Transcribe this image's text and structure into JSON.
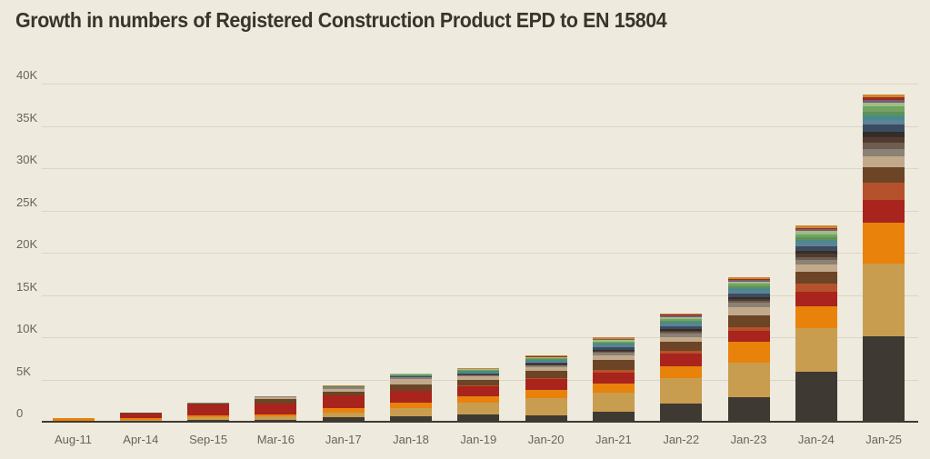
{
  "title": "Growth in numbers of Registered Construction Product EPD to EN 15804",
  "colors": {
    "background": "#EEEADD",
    "title_text": "#39342C",
    "axis_line": "#3E3A33",
    "gridline": "#DBD5C6",
    "tick_label": "#6B6456"
  },
  "chart_data": {
    "type": "bar",
    "stacked": true,
    "title": "Growth in numbers of Registered Construction Product EPD to EN 15804",
    "xlabel": "",
    "ylabel": "",
    "legend_position": "none",
    "grid": "horizontal",
    "ylim": [
      0,
      40000
    ],
    "y_axis": {
      "ticks": [
        {
          "label": "0",
          "value": 0
        },
        {
          "label": "5K",
          "value": 5000
        },
        {
          "label": "10K",
          "value": 10000
        },
        {
          "label": "15K",
          "value": 15000
        },
        {
          "label": "20K",
          "value": 20000
        },
        {
          "label": "25K",
          "value": 25000
        },
        {
          "label": "30K",
          "value": 30000
        },
        {
          "label": "35K",
          "value": 35000
        },
        {
          "label": "40K",
          "value": 40000
        }
      ]
    },
    "categories": [
      "Aug-11",
      "Apr-14",
      "Sep-15",
      "Mar-16",
      "Jan-17",
      "Jan-18",
      "Jan-19",
      "Jan-20",
      "Jan-21",
      "Jan-22",
      "Jan-23",
      "Jan-24",
      "Jan-25"
    ],
    "approx_totals": [
      360,
      950,
      2200,
      2900,
      4150,
      5610,
      6220,
      7760,
      9910,
      12750,
      17050,
      23100,
      38650
    ],
    "series": [
      {
        "name": "series-charcoal",
        "color": "#3E3A33",
        "values": [
          0,
          0,
          100,
          100,
          400,
          550,
          800,
          700,
          1100,
          2000,
          2800,
          5800,
          10000
        ]
      },
      {
        "name": "series-gold",
        "color": "#C99D4F",
        "values": [
          0,
          150,
          300,
          400,
          550,
          950,
          1300,
          2000,
          2250,
          3100,
          4100,
          5200,
          8600
        ]
      },
      {
        "name": "series-orange",
        "color": "#E8820B",
        "values": [
          280,
          200,
          250,
          300,
          600,
          700,
          800,
          950,
          1100,
          1400,
          2500,
          2500,
          4800
        ]
      },
      {
        "name": "series-red",
        "color": "#A9241C",
        "values": [
          0,
          500,
          1250,
          1300,
          1450,
          1350,
          1150,
          1300,
          1300,
          1500,
          1300,
          1800,
          2700
        ]
      },
      {
        "name": "series-rust",
        "color": "#B5512B",
        "values": [
          80,
          0,
          0,
          0,
          0,
          50,
          100,
          150,
          250,
          300,
          400,
          900,
          2100
        ]
      },
      {
        "name": "series-brown",
        "color": "#6B4526",
        "values": [
          0,
          100,
          100,
          450,
          450,
          700,
          650,
          800,
          1200,
          1100,
          1400,
          1400,
          1800
        ]
      },
      {
        "name": "series-beige",
        "color": "#C2A98C",
        "values": [
          0,
          0,
          100,
          200,
          350,
          600,
          450,
          450,
          500,
          550,
          900,
          900,
          1300
        ]
      },
      {
        "name": "series-gray",
        "color": "#8B8174",
        "values": [
          0,
          0,
          100,
          150,
          200,
          250,
          150,
          200,
          350,
          400,
          600,
          500,
          900
        ]
      },
      {
        "name": "series-taupe",
        "color": "#6E5D50",
        "values": [
          0,
          0,
          0,
          0,
          0,
          20,
          30,
          60,
          120,
          150,
          200,
          400,
          700
        ]
      },
      {
        "name": "series-maroon",
        "color": "#523A30",
        "values": [
          0,
          0,
          0,
          0,
          0,
          20,
          40,
          80,
          150,
          200,
          250,
          400,
          700
        ]
      },
      {
        "name": "series-espresso",
        "color": "#342E28",
        "values": [
          0,
          0,
          0,
          0,
          0,
          10,
          30,
          60,
          120,
          150,
          200,
          350,
          600
        ]
      },
      {
        "name": "series-navy",
        "color": "#3C4C60",
        "values": [
          0,
          0,
          0,
          0,
          0,
          40,
          80,
          150,
          280,
          350,
          450,
          550,
          900
        ]
      },
      {
        "name": "series-steel-blue",
        "color": "#5E8296",
        "values": [
          0,
          0,
          0,
          0,
          0,
          30,
          60,
          120,
          200,
          250,
          300,
          350,
          500
        ]
      },
      {
        "name": "series-teal",
        "color": "#4A8A8C",
        "values": [
          0,
          0,
          0,
          0,
          80,
          150,
          250,
          250,
          200,
          250,
          300,
          350,
          500
        ]
      },
      {
        "name": "series-green-dark",
        "color": "#5E9258",
        "values": [
          0,
          0,
          0,
          0,
          0,
          0,
          30,
          50,
          100,
          150,
          200,
          300,
          500
        ]
      },
      {
        "name": "series-green",
        "color": "#74A261",
        "values": [
          0,
          0,
          0,
          0,
          0,
          40,
          80,
          120,
          180,
          250,
          300,
          400,
          600
        ]
      },
      {
        "name": "series-green-light",
        "color": "#9BBF85",
        "values": [
          0,
          0,
          0,
          0,
          50,
          100,
          120,
          80,
          150,
          200,
          250,
          350,
          500
        ]
      },
      {
        "name": "series-purple",
        "color": "#7A5A78",
        "values": [
          0,
          0,
          0,
          0,
          0,
          10,
          20,
          50,
          100,
          150,
          200,
          200,
          300
        ]
      },
      {
        "name": "series-crimson",
        "color": "#9E2B20",
        "values": [
          0,
          0,
          0,
          0,
          0,
          10,
          20,
          40,
          80,
          100,
          150,
          150,
          250
        ]
      },
      {
        "name": "series-ochre",
        "color": "#CE862B",
        "values": [
          0,
          0,
          0,
          0,
          20,
          30,
          60,
          150,
          180,
          200,
          250,
          300,
          400
        ]
      }
    ]
  }
}
